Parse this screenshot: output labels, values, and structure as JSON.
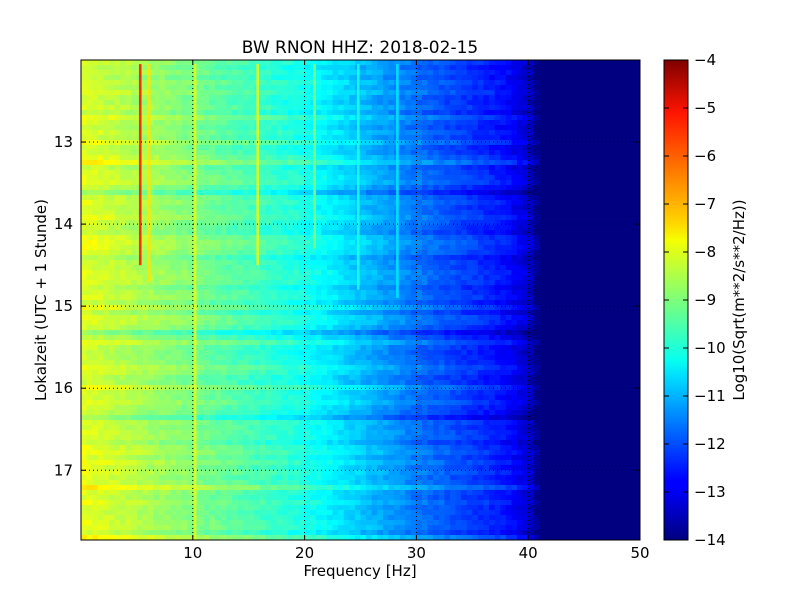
{
  "chart_data": {
    "type": "heatmap",
    "title": "BW RNON HHZ: 2018-02-15",
    "xlabel": "Frequency [Hz]",
    "ylabel": "Lokalzeit (UTC + 1 Stunde)",
    "xlim": [
      0,
      50
    ],
    "ylim": [
      17.85,
      12.0
    ],
    "xticks": [
      10,
      20,
      30,
      40,
      50
    ],
    "yticks": [
      13,
      14,
      15,
      16,
      17
    ],
    "grid": true,
    "colormap": "jet",
    "colorbar": {
      "label": "Log10(Sqrt(m**2/s**2/Hz))",
      "range": [
        -14,
        -4
      ],
      "ticks": [
        -4,
        -5,
        -6,
        -7,
        -8,
        -9,
        -10,
        -11,
        -12,
        -13,
        -14
      ]
    },
    "baseline_spectrum": [
      {
        "freq": 0,
        "value": -8.0
      },
      {
        "freq": 2,
        "value": -8.2
      },
      {
        "freq": 5,
        "value": -8.5
      },
      {
        "freq": 10,
        "value": -9.0
      },
      {
        "freq": 15,
        "value": -9.5
      },
      {
        "freq": 20,
        "value": -10.0
      },
      {
        "freq": 25,
        "value": -10.8
      },
      {
        "freq": 30,
        "value": -11.6
      },
      {
        "freq": 35,
        "value": -12.2
      },
      {
        "freq": 38,
        "value": -12.6
      },
      {
        "freq": 40,
        "value": -13.2
      },
      {
        "freq": 41,
        "value": -14.0
      },
      {
        "freq": 50,
        "value": -14.0
      }
    ],
    "spectral_lines": [
      {
        "freq": 5.3,
        "value": -5.5,
        "start": 12.05,
        "end": 14.5
      },
      {
        "freq": 6.1,
        "value": -7.5,
        "start": 12.05,
        "end": 14.7
      },
      {
        "freq": 10.2,
        "value": -8.0,
        "start": 12.05,
        "end": 17.85
      },
      {
        "freq": 15.8,
        "value": -8.0,
        "start": 12.05,
        "end": 14.5
      },
      {
        "freq": 20.9,
        "value": -9.0,
        "start": 12.05,
        "end": 14.3
      },
      {
        "freq": 24.8,
        "value": -10.0,
        "start": 12.05,
        "end": 14.8
      },
      {
        "freq": 28.3,
        "value": -10.5,
        "start": 12.05,
        "end": 14.9
      }
    ]
  }
}
